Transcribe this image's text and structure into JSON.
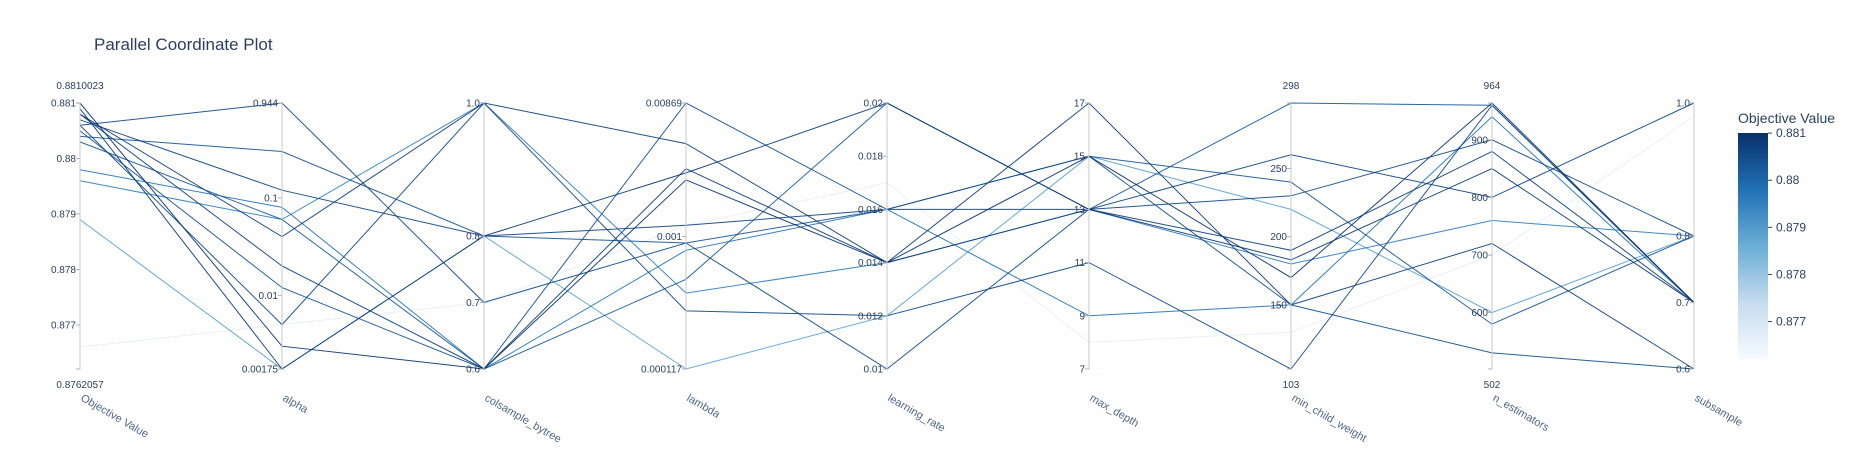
{
  "chart_data": {
    "type": "parallel_coordinates",
    "title": "Parallel Coordinate Plot",
    "colorbar": {
      "title": "Objective Value",
      "range": [
        0.8762057,
        0.8810023
      ],
      "ticks": [
        "0.881",
        "0.88",
        "0.879",
        "0.878",
        "0.877"
      ],
      "tick_values": [
        0.881,
        0.88,
        0.879,
        0.878,
        0.877
      ],
      "colors": [
        "#f7fbff",
        "#08306b"
      ]
    },
    "dimensions": [
      {
        "label": "Objective Value",
        "range": [
          0.8762057,
          0.8810023
        ],
        "scale": "linear",
        "tick_values": [
          0.8762057,
          0.877,
          0.878,
          0.879,
          0.88,
          0.881,
          0.8810023
        ],
        "tick_text": [
          "0.8762057",
          "0.877",
          "0.878",
          "0.879",
          "0.88",
          "0.881",
          "0.8810023"
        ]
      },
      {
        "label": "alpha",
        "range": [
          0.00175,
          0.944
        ],
        "scale": "log",
        "tick_values": [
          0.00175,
          0.01,
          0.1,
          0.944
        ],
        "tick_text": [
          "0.00175",
          "0.01",
          "0.1",
          "0.944"
        ]
      },
      {
        "label": "colsample_bytree",
        "range": [
          0.6,
          1.0
        ],
        "scale": "linear",
        "tick_values": [
          0.6,
          0.7,
          0.8,
          1.0
        ],
        "tick_text": [
          "0.6",
          "0.7",
          "0.8",
          "1.0"
        ]
      },
      {
        "label": "lambda",
        "range": [
          0.000117,
          0.00869
        ],
        "scale": "log",
        "tick_values": [
          0.000117,
          0.001,
          0.00869
        ],
        "tick_text": [
          "0.000117",
          "0.001",
          "0.00869"
        ]
      },
      {
        "label": "learning_rate",
        "range": [
          0.01,
          0.02
        ],
        "scale": "linear",
        "tick_values": [
          0.01,
          0.012,
          0.014,
          0.016,
          0.018,
          0.02
        ],
        "tick_text": [
          "0.01",
          "0.012",
          "0.014",
          "0.016",
          "0.018",
          "0.02"
        ]
      },
      {
        "label": "max_depth",
        "range": [
          7,
          17
        ],
        "scale": "linear",
        "tick_values": [
          7,
          9,
          11,
          13,
          15,
          17
        ],
        "tick_text": [
          "7",
          "9",
          "11",
          "13",
          "15",
          "17"
        ]
      },
      {
        "label": "min_child_weight",
        "range": [
          103,
          298
        ],
        "scale": "linear",
        "tick_values": [
          103,
          150,
          200,
          250,
          298
        ],
        "tick_text": [
          "103",
          "150",
          "200",
          "250",
          "298"
        ]
      },
      {
        "label": "n_estimators",
        "range": [
          502,
          964
        ],
        "scale": "linear",
        "tick_values": [
          502,
          600,
          700,
          800,
          900,
          964
        ],
        "tick_text": [
          "502",
          "600",
          "700",
          "800",
          "900",
          "964"
        ]
      },
      {
        "label": "subsample",
        "range": [
          0.6,
          1.0
        ],
        "scale": "linear",
        "tick_values": [
          0.6,
          0.7,
          0.8,
          1.0
        ],
        "tick_text": [
          "0.6",
          "0.7",
          "0.8",
          "1.0"
        ]
      }
    ],
    "trials": [
      [
        0.8762057,
        0.02,
        0.6,
        0.0015,
        0.018,
        7,
        110,
        680,
        1.0
      ],
      [
        0.8766,
        0.005,
        0.7,
        0.0012,
        0.017,
        8,
        130,
        700,
        0.98
      ],
      [
        0.8789,
        0.00175,
        0.8,
        0.000117,
        0.012,
        15,
        220,
        600,
        0.8
      ],
      [
        0.8796,
        0.06,
        1.0,
        0.0004,
        0.014,
        13,
        180,
        760,
        0.8
      ],
      [
        0.8798,
        0.08,
        0.6,
        0.0008,
        0.016,
        9,
        150,
        940,
        0.7
      ],
      [
        0.8804,
        0.3,
        0.8,
        0.0009,
        0.016,
        15,
        240,
        580,
        0.8
      ],
      [
        0.8806,
        0.944,
        0.7,
        0.0009,
        0.01,
        13,
        230,
        900,
        0.8
      ],
      [
        0.8807,
        0.12,
        0.8,
        0.0012,
        0.016,
        13,
        260,
        800,
        1.0
      ],
      [
        0.8806,
        0.005,
        1.0,
        0.0003,
        0.012,
        11,
        103,
        960,
        0.7
      ],
      [
        0.8808,
        0.04,
        1.0,
        0.0045,
        0.014,
        17,
        150,
        720,
        0.6
      ],
      [
        0.8809,
        0.00175,
        0.8,
        0.0028,
        0.02,
        13,
        183,
        850,
        0.7
      ],
      [
        0.8810023,
        0.003,
        0.6,
        0.0025,
        0.014,
        15,
        170,
        964,
        0.7
      ],
      [
        0.8805,
        0.012,
        0.6,
        0.00869,
        0.016,
        15,
        150,
        530,
        0.6
      ],
      [
        0.8803,
        0.06,
        0.6,
        0.0005,
        0.02,
        13,
        298,
        960,
        0.7
      ],
      [
        0.8808,
        0.02,
        0.6,
        0.003,
        0.014,
        13,
        190,
        880,
        0.7
      ]
    ]
  }
}
